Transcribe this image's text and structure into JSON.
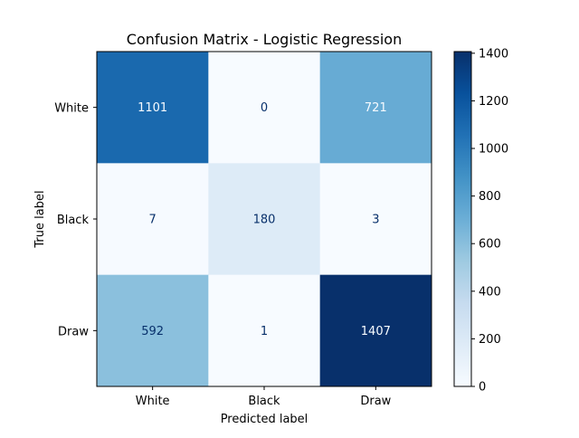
{
  "chart_data": {
    "type": "heatmap",
    "title": "Confusion Matrix - Logistic Regression",
    "xlabel": "Predicted label",
    "ylabel": "True label",
    "x_categories": [
      "White",
      "Black",
      "Draw"
    ],
    "y_categories": [
      "White",
      "Black",
      "Draw"
    ],
    "values": [
      [
        1101,
        0,
        721
      ],
      [
        7,
        180,
        3
      ],
      [
        592,
        1,
        1407
      ]
    ],
    "colormap": "Blues",
    "colorbar": {
      "range": [
        0,
        1407
      ],
      "ticks": [
        0,
        200,
        400,
        600,
        800,
        1000,
        1200,
        1400
      ]
    },
    "colors": {
      "low": "#f7fbff",
      "high": "#08306b",
      "text_on_light": "#08306b",
      "text_on_dark": "#f7fbff"
    },
    "grid": false
  }
}
